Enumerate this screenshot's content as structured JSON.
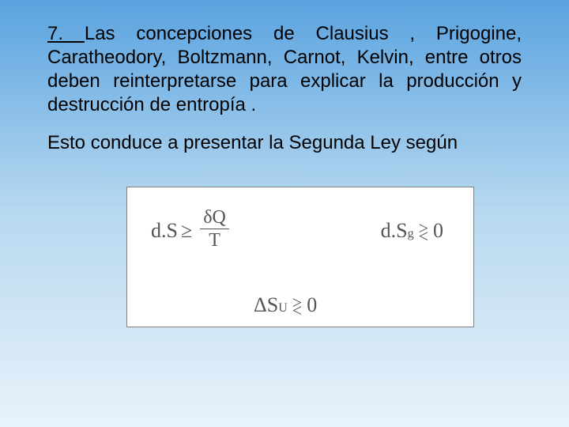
{
  "text": {
    "para1_lead": "7. ",
    "para1_body": "Las concepciones de Clausius , Prigogine, Caratheodory, Boltzmann, Carnot, Kelvin, entre otros deben reinterpretarse para explicar la producción y destrucción de entropía .",
    "para2": "Esto conduce a presentar la Segunda Ley según"
  },
  "formulas": {
    "eq1": {
      "lhs": "d.S",
      "op": "≥",
      "num": "δQ",
      "den": "T"
    },
    "eq2": {
      "lhs": "d.S",
      "sub": "g",
      "op_top": ">",
      "op_bot": "<",
      "rhs": "0"
    },
    "eq3": {
      "delta": "Δ",
      "S": "S",
      "sub": "U",
      "op_top": ">",
      "op_bot": "<",
      "rhs": "0"
    }
  },
  "colors": {
    "text": "#000000",
    "formula_text": "#555555",
    "box_bg": "#ffffff",
    "box_border": "#808080"
  }
}
